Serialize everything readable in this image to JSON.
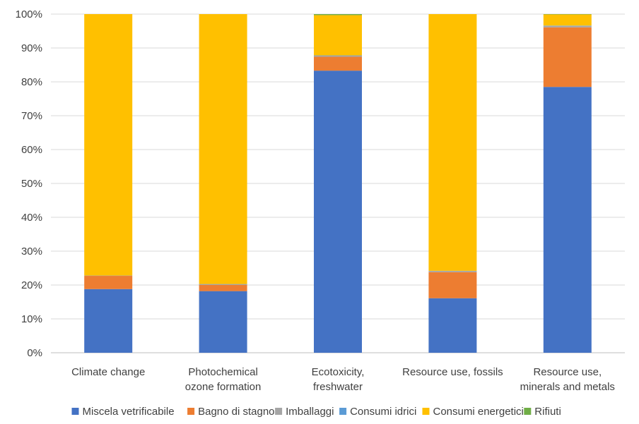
{
  "chart_data": {
    "type": "bar",
    "stacked": true,
    "percent": true,
    "categories": [
      [
        "Climate change"
      ],
      [
        "Photochemical",
        "ozone formation"
      ],
      [
        "Ecotoxicity,",
        "freshwater"
      ],
      [
        "Resource use, fossils"
      ],
      [
        "Resource use,",
        "minerals and metals"
      ]
    ],
    "series": [
      {
        "name": "Miscela vetrificabile",
        "color": "#4472C4",
        "values": [
          18.8,
          18.2,
          83.3,
          16.1,
          78.5
        ]
      },
      {
        "name": "Bagno di stagno",
        "color": "#ED7D31",
        "values": [
          3.9,
          1.8,
          4.1,
          7.7,
          17.6
        ]
      },
      {
        "name": "Imballaggi",
        "color": "#A5A5A5",
        "values": [
          0.1,
          0.3,
          0.3,
          0.4,
          0.4
        ]
      },
      {
        "name": "Consumi idrici",
        "color": "#5B9BD5",
        "values": [
          0.0,
          0.0,
          0.1,
          0.0,
          0.1
        ]
      },
      {
        "name": "Consumi energetici",
        "color": "#FFC000",
        "values": [
          77.2,
          79.7,
          11.9,
          75.8,
          3.3
        ]
      },
      {
        "name": "Rifiuti",
        "color": "#70AD47",
        "values": [
          0.0,
          0.0,
          0.3,
          0.0,
          0.1
        ]
      }
    ],
    "y_ticks": [
      "0%",
      "10%",
      "20%",
      "30%",
      "40%",
      "50%",
      "60%",
      "70%",
      "80%",
      "90%",
      "100%"
    ],
    "ylim": [
      0,
      100
    ],
    "grid": true,
    "legend_position": "bottom",
    "title": "",
    "xlabel": "",
    "ylabel": ""
  }
}
